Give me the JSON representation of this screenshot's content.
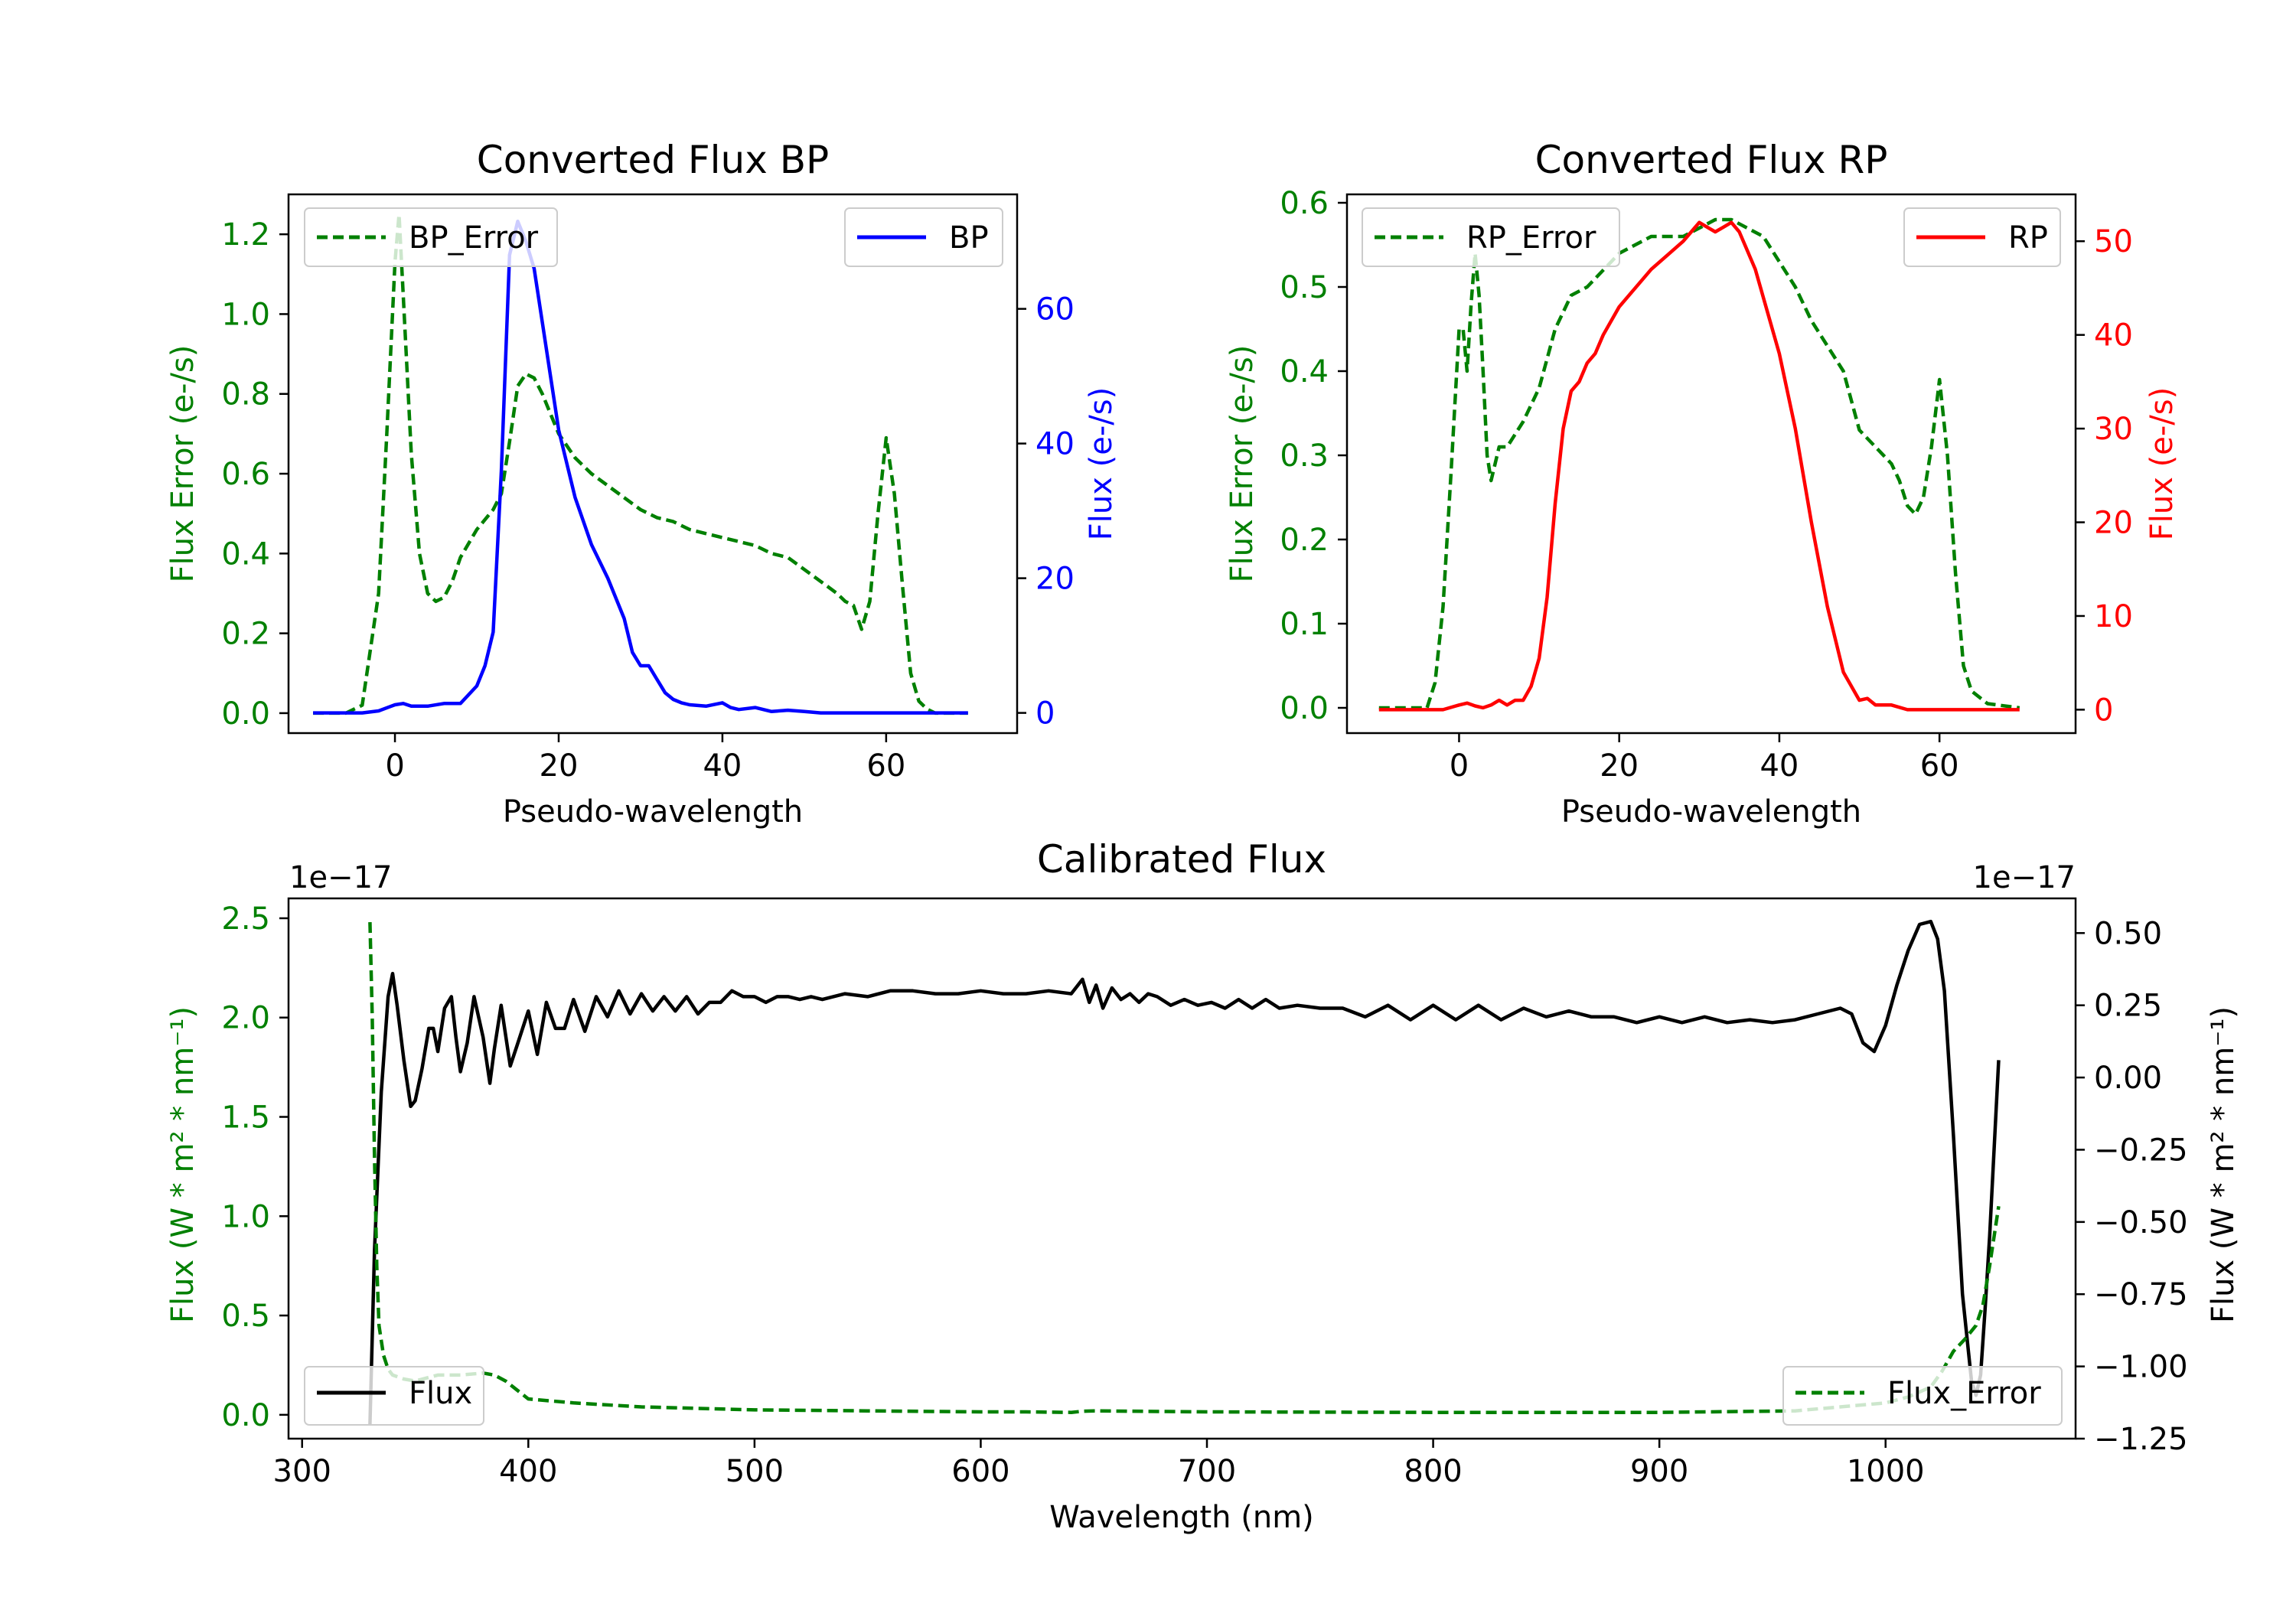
{
  "chart_data": [
    {
      "type": "line",
      "title": "Converted Flux BP",
      "xlabel": "Pseudo-wavelength",
      "ylabel_left": "Flux Error (e-/s)",
      "ylabel_right": "Flux (e-/s)",
      "xlim": [
        -13,
        76
      ],
      "ylim_left": [
        -0.05,
        1.3
      ],
      "ylim_right": [
        -3,
        77
      ],
      "x_ticks": [
        0,
        20,
        40,
        60
      ],
      "y_ticks_left": [
        0.0,
        0.2,
        0.4,
        0.6,
        0.8,
        1.0,
        1.2
      ],
      "y_ticks_right": [
        0,
        20,
        40,
        60
      ],
      "legend_left": {
        "label": "BP_Error",
        "position": "top-left"
      },
      "legend_right": {
        "label": "BP",
        "position": "top-right"
      },
      "series": [
        {
          "name": "BP_Error",
          "axis": "left",
          "color": "#008000",
          "dashed": true,
          "x": [
            -10,
            -6,
            -4,
            -2,
            -1,
            0,
            0.5,
            1,
            2,
            3,
            4,
            5,
            6,
            7,
            8,
            10,
            12,
            13,
            14,
            15,
            16,
            17,
            18,
            19,
            20,
            22,
            24,
            26,
            28,
            30,
            32,
            34,
            36,
            38,
            40,
            42,
            44,
            46,
            48,
            50,
            52,
            54,
            55,
            56,
            57,
            58,
            59,
            60,
            61,
            62,
            63,
            64,
            65,
            66,
            68,
            70
          ],
          "y": [
            0,
            0,
            0.02,
            0.3,
            0.7,
            1.13,
            1.25,
            1.05,
            0.65,
            0.4,
            0.3,
            0.28,
            0.29,
            0.33,
            0.39,
            0.46,
            0.51,
            0.55,
            0.68,
            0.82,
            0.85,
            0.84,
            0.8,
            0.75,
            0.7,
            0.64,
            0.6,
            0.57,
            0.54,
            0.51,
            0.49,
            0.48,
            0.46,
            0.45,
            0.44,
            0.43,
            0.42,
            0.4,
            0.39,
            0.36,
            0.33,
            0.3,
            0.28,
            0.27,
            0.21,
            0.28,
            0.5,
            0.69,
            0.55,
            0.32,
            0.1,
            0.03,
            0.01,
            0,
            0,
            0
          ]
        },
        {
          "name": "BP",
          "axis": "right",
          "color": "#0000ff",
          "dashed": false,
          "x": [
            -10,
            -6,
            -4,
            -2,
            0,
            1,
            2,
            4,
            6,
            8,
            10,
            11,
            12,
            13,
            14,
            15,
            16,
            17,
            18,
            19,
            20,
            22,
            24,
            26,
            28,
            29,
            30,
            31,
            32,
            33,
            34,
            35,
            36,
            38,
            40,
            41,
            42,
            44,
            46,
            48,
            50,
            52,
            56,
            60,
            64,
            70
          ],
          "y": [
            0,
            0,
            0,
            0.3,
            1.2,
            1.4,
            1.0,
            1.0,
            1.4,
            1.4,
            4,
            7,
            12,
            36,
            68,
            73,
            70,
            66,
            58,
            50,
            42,
            32,
            25,
            20,
            14,
            9,
            7,
            7,
            5,
            3,
            2,
            1.5,
            1.2,
            1,
            1.5,
            0.8,
            0.5,
            0.8,
            0.2,
            0.4,
            0.2,
            0,
            0,
            0,
            0,
            0
          ]
        }
      ]
    },
    {
      "type": "line",
      "title": "Converted Flux RP",
      "xlabel": "Pseudo-wavelength",
      "ylabel_left": "Flux Error (e-/s)",
      "ylabel_right": "Flux (e-/s)",
      "xlim": [
        -14,
        77
      ],
      "ylim_left": [
        -0.03,
        0.61
      ],
      "ylim_right": [
        -2.5,
        55
      ],
      "x_ticks": [
        0,
        20,
        40,
        60
      ],
      "y_ticks_left": [
        0.0,
        0.1,
        0.2,
        0.3,
        0.4,
        0.5,
        0.6
      ],
      "y_ticks_right": [
        0,
        10,
        20,
        30,
        40,
        50
      ],
      "legend_left": {
        "label": "RP_Error",
        "position": "top-left"
      },
      "legend_right": {
        "label": "RP",
        "position": "top-right"
      },
      "series": [
        {
          "name": "RP_Error",
          "axis": "left",
          "color": "#008000",
          "dashed": true,
          "x": [
            -10,
            -4,
            -3,
            -2,
            -1,
            0,
            0.5,
            1,
            1.5,
            2,
            2.5,
            3,
            3.5,
            4,
            5,
            6,
            8,
            10,
            12,
            14,
            16,
            18,
            20,
            22,
            24,
            26,
            28,
            30,
            32,
            34,
            36,
            38,
            40,
            42,
            44,
            46,
            48,
            50,
            52,
            54,
            55,
            56,
            57,
            58,
            59,
            60,
            61,
            62,
            63,
            64,
            66,
            70
          ],
          "y": [
            0,
            0,
            0.03,
            0.12,
            0.28,
            0.45,
            0.45,
            0.4,
            0.48,
            0.54,
            0.49,
            0.4,
            0.3,
            0.27,
            0.31,
            0.31,
            0.34,
            0.38,
            0.45,
            0.49,
            0.5,
            0.52,
            0.54,
            0.55,
            0.56,
            0.56,
            0.56,
            0.57,
            0.58,
            0.58,
            0.57,
            0.56,
            0.53,
            0.5,
            0.46,
            0.43,
            0.4,
            0.33,
            0.31,
            0.29,
            0.27,
            0.24,
            0.23,
            0.25,
            0.31,
            0.39,
            0.3,
            0.16,
            0.05,
            0.02,
            0.005,
            0
          ]
        },
        {
          "name": "RP",
          "axis": "right",
          "color": "#ff0000",
          "dashed": false,
          "x": [
            -10,
            -4,
            -2,
            0,
            1,
            2,
            3,
            4,
            5,
            6,
            7,
            8,
            9,
            10,
            11,
            12,
            13,
            14,
            15,
            16,
            17,
            18,
            20,
            22,
            24,
            26,
            28,
            29,
            30,
            31,
            32,
            33,
            34,
            35,
            36,
            37,
            38,
            40,
            42,
            44,
            46,
            48,
            50,
            51,
            52,
            54,
            56,
            58,
            60,
            64,
            70
          ],
          "y": [
            0,
            0,
            0,
            0.5,
            0.7,
            0.4,
            0.2,
            0.5,
            1,
            0.5,
            1,
            1,
            2.5,
            5.5,
            12,
            22,
            30,
            34,
            35,
            37,
            38,
            40,
            43,
            45,
            47,
            48.5,
            50,
            51,
            52,
            51.5,
            51,
            51.5,
            52,
            51,
            49,
            47,
            44,
            38,
            30,
            20,
            11,
            4,
            1,
            1.2,
            0.5,
            0.5,
            0,
            0,
            0,
            0,
            0
          ]
        }
      ]
    },
    {
      "type": "line",
      "title": "Calibrated Flux",
      "xlabel": "Wavelength (nm)",
      "ylabel_left": "Flux (W * m² * nm⁻¹)",
      "ylabel_right": "Flux (W * m² * nm⁻¹)",
      "offset_left": "1e−17",
      "offset_right": "1e−17",
      "xlim": [
        294,
        1084
      ],
      "ylim_left": [
        -0.12,
        2.6
      ],
      "ylim_right": [
        -1.25,
        0.62
      ],
      "x_ticks": [
        300,
        400,
        500,
        600,
        700,
        800,
        900,
        1000
      ],
      "y_ticks_left": [
        0.0,
        0.5,
        1.0,
        1.5,
        2.0,
        2.5
      ],
      "y_ticks_left_labels": [
        "0.0",
        "0.5",
        "1.0",
        "1.5",
        "2.0",
        "2.5"
      ],
      "y_ticks_right": [
        0.5,
        0.25,
        0.0,
        -0.25,
        -0.5,
        -0.75,
        -1.0,
        -1.25
      ],
      "y_ticks_right_labels": [
        "0.50",
        "0.25",
        "0.00",
        "−0.25",
        "−0.50",
        "−0.75",
        "−1.00",
        "−1.25"
      ],
      "legend_left": {
        "label": "Flux",
        "position": "bottom-left"
      },
      "legend_right": {
        "label": "Flux_Error",
        "position": "bottom-right"
      },
      "series": [
        {
          "name": "Flux",
          "axis": "right",
          "color": "#000000",
          "dashed": false,
          "x": [
            330,
            332,
            335,
            338,
            340,
            342,
            345,
            348,
            350,
            353,
            356,
            358,
            360,
            363,
            366,
            368,
            370,
            373,
            376,
            380,
            383,
            385,
            388,
            392,
            395,
            400,
            404,
            408,
            412,
            416,
            420,
            425,
            430,
            435,
            440,
            445,
            450,
            455,
            460,
            465,
            470,
            475,
            480,
            485,
            490,
            495,
            500,
            505,
            510,
            515,
            520,
            525,
            530,
            540,
            550,
            560,
            570,
            580,
            590,
            600,
            610,
            620,
            630,
            640,
            645,
            648,
            651,
            654,
            658,
            662,
            666,
            670,
            674,
            678,
            684,
            690,
            696,
            702,
            708,
            714,
            720,
            726,
            732,
            740,
            750,
            760,
            770,
            780,
            790,
            800,
            810,
            820,
            830,
            840,
            850,
            860,
            870,
            880,
            890,
            900,
            910,
            920,
            930,
            940,
            950,
            960,
            970,
            980,
            985,
            990,
            995,
            1000,
            1005,
            1010,
            1015,
            1020,
            1023,
            1026,
            1030,
            1034,
            1038,
            1040,
            1042,
            1044,
            1046,
            1050
          ],
          "y": [
            -1.2,
            -0.6,
            -0.05,
            0.28,
            0.36,
            0.25,
            0.06,
            -0.1,
            -0.08,
            0.03,
            0.17,
            0.17,
            0.09,
            0.24,
            0.28,
            0.14,
            0.02,
            0.12,
            0.28,
            0.14,
            -0.02,
            0.1,
            0.25,
            0.04,
            0.11,
            0.23,
            0.08,
            0.26,
            0.17,
            0.17,
            0.27,
            0.16,
            0.28,
            0.21,
            0.3,
            0.22,
            0.29,
            0.23,
            0.28,
            0.23,
            0.28,
            0.22,
            0.26,
            0.26,
            0.3,
            0.28,
            0.28,
            0.26,
            0.28,
            0.28,
            0.27,
            0.28,
            0.27,
            0.29,
            0.28,
            0.3,
            0.3,
            0.29,
            0.29,
            0.3,
            0.29,
            0.29,
            0.3,
            0.29,
            0.34,
            0.26,
            0.32,
            0.24,
            0.31,
            0.27,
            0.29,
            0.26,
            0.29,
            0.28,
            0.25,
            0.27,
            0.25,
            0.26,
            0.24,
            0.27,
            0.24,
            0.27,
            0.24,
            0.25,
            0.24,
            0.24,
            0.21,
            0.25,
            0.2,
            0.25,
            0.2,
            0.25,
            0.2,
            0.24,
            0.21,
            0.23,
            0.21,
            0.21,
            0.19,
            0.21,
            0.19,
            0.21,
            0.19,
            0.2,
            0.19,
            0.2,
            0.22,
            0.24,
            0.22,
            0.12,
            0.09,
            0.18,
            0.32,
            0.44,
            0.53,
            0.54,
            0.48,
            0.3,
            -0.2,
            -0.75,
            -1.05,
            -1.1,
            -1.03,
            -0.8,
            -0.55,
            0.06
          ]
        },
        {
          "name": "Flux_Error",
          "axis": "left",
          "color": "#008000",
          "dashed": true,
          "x": [
            330,
            331,
            332,
            333,
            334,
            336,
            338,
            340,
            345,
            350,
            360,
            370,
            380,
            385,
            390,
            400,
            420,
            450,
            500,
            550,
            600,
            620,
            640,
            645,
            650,
            700,
            800,
            900,
            960,
            980,
            1000,
            1010,
            1020,
            1025,
            1030,
            1035,
            1040,
            1043,
            1046,
            1048,
            1050
          ],
          "y": [
            2.48,
            2.0,
            1.3,
            0.75,
            0.45,
            0.3,
            0.23,
            0.2,
            0.18,
            0.17,
            0.2,
            0.2,
            0.21,
            0.2,
            0.17,
            0.08,
            0.06,
            0.04,
            0.025,
            0.02,
            0.015,
            0.015,
            0.012,
            0.018,
            0.02,
            0.015,
            0.012,
            0.012,
            0.02,
            0.04,
            0.06,
            0.09,
            0.14,
            0.22,
            0.32,
            0.38,
            0.45,
            0.55,
            0.75,
            0.9,
            1.05
          ]
        }
      ]
    }
  ]
}
